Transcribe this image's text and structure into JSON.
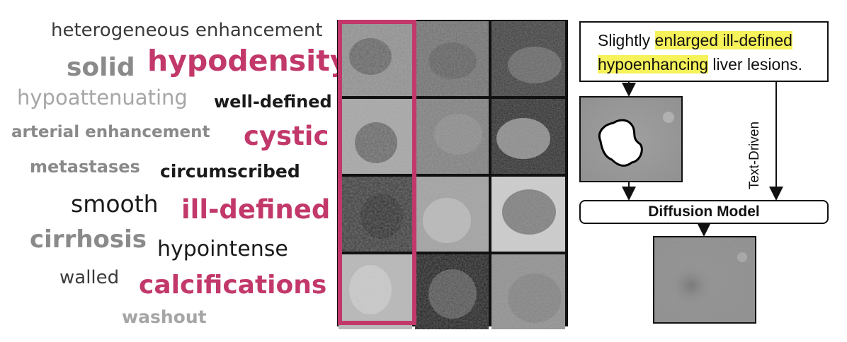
{
  "word_cloud": [
    {
      "text": "heterogeneous enhancement",
      "tone": "dark"
    },
    {
      "text": "solid",
      "tone": "gray"
    },
    {
      "text": "hypodensity",
      "tone": "pink"
    },
    {
      "text": "hypoattenuating",
      "tone": "lgray"
    },
    {
      "text": "well-defined",
      "tone": "black"
    },
    {
      "text": "arterial enhancement",
      "tone": "gray"
    },
    {
      "text": "cystic",
      "tone": "pink"
    },
    {
      "text": "metastases",
      "tone": "gray"
    },
    {
      "text": "circumscribed",
      "tone": "black"
    },
    {
      "text": "smooth",
      "tone": "black"
    },
    {
      "text": "ill-defined",
      "tone": "pink"
    },
    {
      "text": "cirrhosis",
      "tone": "gray"
    },
    {
      "text": "hypointense",
      "tone": "black"
    },
    {
      "text": "walled",
      "tone": "dark"
    },
    {
      "text": "calcifications",
      "tone": "pink"
    },
    {
      "text": "washout",
      "tone": "lgray"
    }
  ],
  "grid": {
    "rows": 4,
    "cols": 3,
    "highlighted_column": 1,
    "highlight_color": "#c2386a"
  },
  "pipeline": {
    "prompt_parts": [
      {
        "text": "Slightly ",
        "highlight": false
      },
      {
        "text": "enlarged ill-defined",
        "highlight": true
      },
      {
        "text": " ",
        "highlight": false
      },
      {
        "text": "hypoenhancing",
        "highlight": true
      },
      {
        "text": " liver lesions.",
        "highlight": false
      }
    ],
    "highlight_color": "#f6f25a",
    "text_driven_label": "Text-Driven",
    "model_label": "Diffusion Model"
  }
}
